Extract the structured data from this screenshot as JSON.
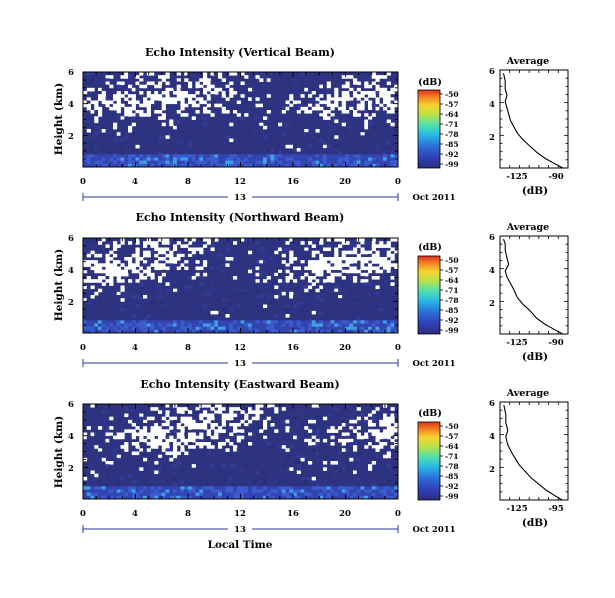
{
  "chart_data": [
    {
      "type": "heatmap",
      "title": "Echo Intensity (Vertical Beam)",
      "ylabel": "Height (km)",
      "x_ticks": [
        "0",
        "4",
        "8",
        "12",
        "16",
        "20",
        "0"
      ],
      "y_ticks": [
        "6",
        "4",
        "2"
      ],
      "ylim": [
        0,
        6
      ],
      "day_label": "13",
      "date_label": "Oct 2011",
      "colorbar": {
        "title": "(dB)",
        "ticks": [
          "-50",
          "-57",
          "-64",
          "-71",
          "-78",
          "-85",
          "-92",
          "-99"
        ]
      },
      "average": {
        "title": "Average",
        "xlabel": "(dB)",
        "x_ticks": [
          "-125",
          "-90"
        ],
        "y_ticks": [
          "6",
          "4",
          "2"
        ],
        "profile": [
          [
            -91,
            0
          ],
          [
            -96,
            0.3
          ],
          [
            -101,
            0.6
          ],
          [
            -106,
            1.0
          ],
          [
            -110,
            1.4
          ],
          [
            -114,
            1.8
          ],
          [
            -117,
            2.2
          ],
          [
            -119,
            2.6
          ],
          [
            -121,
            3.0
          ],
          [
            -122,
            3.4
          ],
          [
            -123,
            3.8
          ],
          [
            -124,
            4.2
          ],
          [
            -123,
            4.6
          ],
          [
            -124,
            5.0
          ],
          [
            -124,
            5.5
          ],
          [
            -125,
            6
          ]
        ]
      }
    },
    {
      "type": "heatmap",
      "title": "Echo Intensity (Northward Beam)",
      "ylabel": "Height (km)",
      "x_ticks": [
        "0",
        "4",
        "8",
        "12",
        "16",
        "20",
        "0"
      ],
      "y_ticks": [
        "6",
        "4",
        "2"
      ],
      "ylim": [
        0,
        6
      ],
      "day_label": "13",
      "date_label": "Oct 2011",
      "colorbar": {
        "title": "(dB)",
        "ticks": [
          "-50",
          "-57",
          "-64",
          "-71",
          "-78",
          "-85",
          "-92",
          "-99"
        ]
      },
      "average": {
        "title": "Average",
        "xlabel": "(dB)",
        "x_ticks": [
          "-125",
          "-90"
        ],
        "y_ticks": [
          "6",
          "4",
          "2"
        ],
        "profile": [
          [
            -91,
            0
          ],
          [
            -96,
            0.3
          ],
          [
            -101,
            0.6
          ],
          [
            -106,
            1.0
          ],
          [
            -110,
            1.5
          ],
          [
            -114,
            1.9
          ],
          [
            -117,
            2.3
          ],
          [
            -119,
            2.8
          ],
          [
            -121,
            3.2
          ],
          [
            -123,
            3.6
          ],
          [
            -124,
            4.0
          ],
          [
            -122,
            4.4
          ],
          [
            -123,
            4.8
          ],
          [
            -124,
            5.3
          ],
          [
            -124,
            5.7
          ],
          [
            -125,
            6
          ]
        ]
      }
    },
    {
      "type": "heatmap",
      "title": "Echo Intensity (Eastward Beam)",
      "ylabel": "Height (km)",
      "xlabel": "Local Time",
      "x_ticks": [
        "0",
        "4",
        "8",
        "12",
        "16",
        "20",
        "0"
      ],
      "y_ticks": [
        "6",
        "4",
        "2"
      ],
      "ylim": [
        0,
        6
      ],
      "day_label": "13",
      "date_label": "Oct 2011",
      "colorbar": {
        "title": "(dB)",
        "ticks": [
          "-50",
          "-57",
          "-64",
          "-71",
          "-78",
          "-85",
          "-92",
          "-99"
        ]
      },
      "average": {
        "title": "Average",
        "xlabel": "(dB)",
        "x_ticks": [
          "-125",
          "-95"
        ],
        "y_ticks": [
          "6",
          "4",
          "2"
        ],
        "profile": [
          [
            -95,
            0
          ],
          [
            -99,
            0.3
          ],
          [
            -103,
            0.6
          ],
          [
            -107,
            1.0
          ],
          [
            -111,
            1.4
          ],
          [
            -114,
            1.8
          ],
          [
            -117,
            2.2
          ],
          [
            -119,
            2.6
          ],
          [
            -121,
            3.0
          ],
          [
            -123,
            3.5
          ],
          [
            -124,
            4.0
          ],
          [
            -123,
            4.4
          ],
          [
            -124,
            4.9
          ],
          [
            -124,
            5.4
          ],
          [
            -125,
            6
          ]
        ]
      }
    }
  ]
}
